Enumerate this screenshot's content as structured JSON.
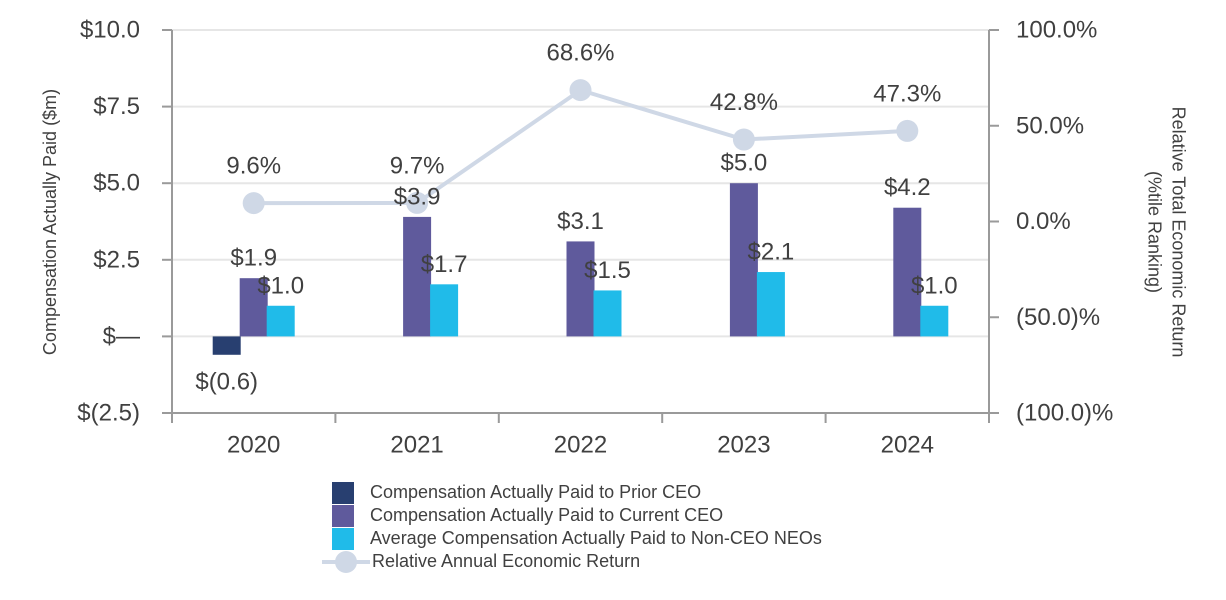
{
  "chart_data": {
    "type": "bar+line",
    "categories": [
      "2020",
      "2021",
      "2022",
      "2023",
      "2024"
    ],
    "left_axis": {
      "label": "Compensation Actually Paid ($m)",
      "ylim": [
        -2.5,
        10.0
      ],
      "ticks": [
        10.0,
        7.5,
        5.0,
        2.5,
        0.0,
        -2.5
      ],
      "tick_labels": [
        "$10.0",
        "$7.5",
        "$5.0",
        "$2.5",
        "$—",
        "$(2.5)"
      ]
    },
    "right_axis": {
      "label_line1": "Relative Total Economic Return",
      "label_line2": "(%tile Ranking)",
      "ylim": [
        -100.0,
        100.0
      ],
      "ticks": [
        100.0,
        50.0,
        0.0,
        -50.0,
        -100.0
      ],
      "tick_labels": [
        "100.0%",
        "50.0%",
        "0.0%",
        "(50.0)%",
        "(100.0)%"
      ]
    },
    "bar_series": [
      {
        "name": "Compensation Actually Paid to Prior CEO",
        "color": "#283f70",
        "values": [
          -0.6,
          null,
          null,
          null,
          null
        ],
        "labels": [
          "$(0.6)",
          null,
          null,
          null,
          null
        ]
      },
      {
        "name": "Compensation Actually Paid to Current CEO",
        "color": "#5f5a9c",
        "values": [
          1.9,
          3.9,
          3.1,
          5.0,
          4.2
        ],
        "labels": [
          "$1.9",
          "$3.9",
          "$3.1",
          "$5.0",
          "$4.2"
        ]
      },
      {
        "name": "Average Compensation Actually Paid to Non-CEO NEOs",
        "color": "#20bbe9",
        "values": [
          1.0,
          1.7,
          1.5,
          2.1,
          1.0
        ],
        "labels": [
          "$1.0",
          "$1.7",
          "$1.5",
          "$2.1",
          "$1.0"
        ]
      }
    ],
    "line_series": {
      "name": "Relative Annual Economic Return",
      "color": "#cfd8e6",
      "values": [
        9.6,
        9.7,
        68.6,
        42.8,
        47.3
      ],
      "labels": [
        "9.6%",
        "9.7%",
        "68.6%",
        "42.8%",
        "47.3%"
      ]
    },
    "grid": true,
    "legend_position": "bottom"
  }
}
